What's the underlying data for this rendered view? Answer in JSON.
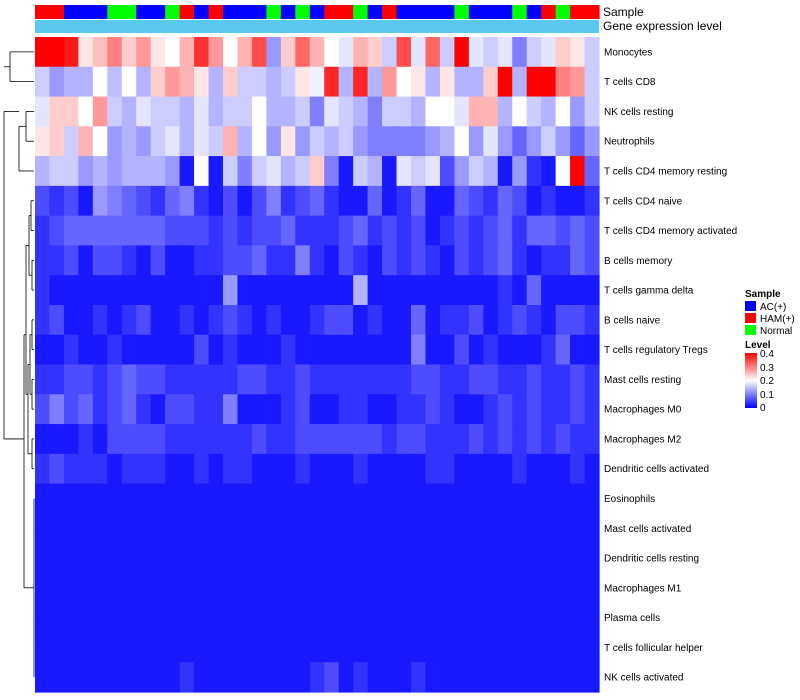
{
  "chart_data": {
    "type": "heatmap",
    "title": "",
    "annotation_rows": [
      "Sample",
      "Gene expression level"
    ],
    "row_labels": [
      "Monocytes",
      "T cells CD8",
      "NK cells resting",
      "Neutrophils",
      "T cells CD4 memory resting",
      "T cells CD4 naive",
      "T cells CD4 memory activated",
      "B cells memory",
      "T cells gamma delta",
      "B cells naive",
      "T cells regulatory  Tregs",
      "Mast cells resting",
      "Macrophages M0",
      "Macrophages M2",
      "Dendritic cells activated",
      "Eosinophils",
      "Mast cells activated",
      "Dendritic cells resting",
      "Macrophages M1",
      "Plasma cells",
      "T cells follicular helper",
      "NK cells activated"
    ],
    "sample_groups": [
      "HAM(+)",
      "HAM(+)",
      "AC(+)",
      "AC(+)",
      "AC(+)",
      "Normal",
      "Normal",
      "AC(+)",
      "AC(+)",
      "Normal",
      "HAM(+)",
      "AC(+)",
      "HAM(+)",
      "AC(+)",
      "AC(+)",
      "AC(+)",
      "Normal",
      "AC(+)",
      "Normal",
      "AC(+)",
      "HAM(+)",
      "HAM(+)",
      "Normal",
      "AC(+)",
      "HAM(+)",
      "AC(+)",
      "AC(+)",
      "AC(+)",
      "AC(+)",
      "Normal",
      "AC(+)",
      "AC(+)",
      "AC(+)",
      "Normal",
      "AC(+)",
      "HAM(+)",
      "Normal",
      "HAM(+)",
      "HAM(+)"
    ],
    "values": [
      [
        0.4,
        0.4,
        0.38,
        0.22,
        0.25,
        0.3,
        0.24,
        0.28,
        0.22,
        0.2,
        0.26,
        0.36,
        0.28,
        0.2,
        0.26,
        0.34,
        0.12,
        0.24,
        0.32,
        0.26,
        0.2,
        0.18,
        0.26,
        0.24,
        0.16,
        0.34,
        0.18,
        0.32,
        0.16,
        0.4,
        0.18,
        0.16,
        0.18,
        0.1,
        0.16,
        0.18,
        0.24,
        0.22,
        0.16
      ],
      [
        0.16,
        0.12,
        0.14,
        0.14,
        0.2,
        0.15,
        0.2,
        0.14,
        0.24,
        0.28,
        0.26,
        0.22,
        0.14,
        0.24,
        0.16,
        0.16,
        0.14,
        0.16,
        0.22,
        0.19,
        0.37,
        0.14,
        0.37,
        0.14,
        0.28,
        0.2,
        0.22,
        0.14,
        0.22,
        0.14,
        0.14,
        0.24,
        0.4,
        0.14,
        0.4,
        0.4,
        0.3,
        0.28,
        0.16
      ],
      [
        0.18,
        0.24,
        0.24,
        0.2,
        0.28,
        0.16,
        0.14,
        0.18,
        0.16,
        0.16,
        0.14,
        0.18,
        0.14,
        0.16,
        0.16,
        0.2,
        0.14,
        0.14,
        0.16,
        0.1,
        0.18,
        0.16,
        0.14,
        0.1,
        0.16,
        0.16,
        0.14,
        0.2,
        0.2,
        0.18,
        0.26,
        0.26,
        0.14,
        0.2,
        0.16,
        0.14,
        0.2,
        0.12,
        0.16
      ],
      [
        0.22,
        0.24,
        0.16,
        0.26,
        0.2,
        0.12,
        0.14,
        0.12,
        0.16,
        0.18,
        0.14,
        0.18,
        0.16,
        0.26,
        0.14,
        0.2,
        0.12,
        0.22,
        0.12,
        0.16,
        0.14,
        0.16,
        0.12,
        0.1,
        0.1,
        0.1,
        0.1,
        0.12,
        0.14,
        0.2,
        0.12,
        0.18,
        0.12,
        0.08,
        0.12,
        0.16,
        0.12,
        0.08,
        0.12
      ],
      [
        0.14,
        0.16,
        0.16,
        0.12,
        0.14,
        0.12,
        0.14,
        0.14,
        0.14,
        0.12,
        0.02,
        0.2,
        0.02,
        0.16,
        0.1,
        0.16,
        0.18,
        0.14,
        0.16,
        0.24,
        0.1,
        0.02,
        0.16,
        0.14,
        0.02,
        0.18,
        0.16,
        0.18,
        0.06,
        0.12,
        0.16,
        0.14,
        0.02,
        0.12,
        0.04,
        0.02,
        0.2,
        0.4,
        0.08
      ],
      [
        0.06,
        0.04,
        0.06,
        0.02,
        0.12,
        0.1,
        0.08,
        0.06,
        0.04,
        0.08,
        0.1,
        0.04,
        0.02,
        0.06,
        0.02,
        0.06,
        0.1,
        0.04,
        0.06,
        0.08,
        0.04,
        0.02,
        0.02,
        0.08,
        0.02,
        0.04,
        0.08,
        0.02,
        0.02,
        0.08,
        0.06,
        0.04,
        0.08,
        0.06,
        0.02,
        0.04,
        0.02,
        0.02,
        0.04
      ],
      [
        0.04,
        0.06,
        0.08,
        0.08,
        0.08,
        0.08,
        0.08,
        0.08,
        0.08,
        0.06,
        0.06,
        0.06,
        0.04,
        0.06,
        0.04,
        0.06,
        0.06,
        0.08,
        0.04,
        0.04,
        0.04,
        0.06,
        0.08,
        0.04,
        0.06,
        0.04,
        0.06,
        0.02,
        0.04,
        0.06,
        0.04,
        0.06,
        0.08,
        0.04,
        0.08,
        0.08,
        0.06,
        0.08,
        0.06
      ],
      [
        0.04,
        0.04,
        0.06,
        0.02,
        0.06,
        0.06,
        0.04,
        0.02,
        0.06,
        0.02,
        0.02,
        0.04,
        0.04,
        0.06,
        0.06,
        0.08,
        0.04,
        0.04,
        0.1,
        0.04,
        0.02,
        0.06,
        0.04,
        0.02,
        0.06,
        0.04,
        0.06,
        0.04,
        0.02,
        0.06,
        0.04,
        0.06,
        0.08,
        0.04,
        0.02,
        0.04,
        0.04,
        0.08,
        0.06
      ],
      [
        0.04,
        0.02,
        0.02,
        0.02,
        0.02,
        0.02,
        0.02,
        0.02,
        0.02,
        0.02,
        0.02,
        0.02,
        0.02,
        0.12,
        0.02,
        0.02,
        0.02,
        0.02,
        0.02,
        0.02,
        0.02,
        0.02,
        0.14,
        0.02,
        0.02,
        0.02,
        0.02,
        0.02,
        0.02,
        0.02,
        0.02,
        0.02,
        0.04,
        0.02,
        0.08,
        0.02,
        0.02,
        0.02,
        0.02
      ],
      [
        0.04,
        0.06,
        0.02,
        0.02,
        0.04,
        0.02,
        0.04,
        0.06,
        0.02,
        0.02,
        0.04,
        0.02,
        0.04,
        0.06,
        0.04,
        0.02,
        0.04,
        0.02,
        0.02,
        0.04,
        0.06,
        0.06,
        0.02,
        0.04,
        0.02,
        0.02,
        0.08,
        0.02,
        0.04,
        0.04,
        0.06,
        0.02,
        0.04,
        0.06,
        0.04,
        0.02,
        0.06,
        0.06,
        0.04
      ],
      [
        0.02,
        0.02,
        0.04,
        0.02,
        0.02,
        0.04,
        0.02,
        0.02,
        0.02,
        0.02,
        0.02,
        0.06,
        0.02,
        0.04,
        0.02,
        0.02,
        0.02,
        0.04,
        0.02,
        0.02,
        0.02,
        0.02,
        0.02,
        0.02,
        0.02,
        0.02,
        0.1,
        0.02,
        0.02,
        0.06,
        0.02,
        0.04,
        0.02,
        0.02,
        0.02,
        0.04,
        0.08,
        0.02,
        0.02
      ],
      [
        0.04,
        0.04,
        0.06,
        0.06,
        0.04,
        0.06,
        0.08,
        0.06,
        0.06,
        0.04,
        0.04,
        0.04,
        0.04,
        0.04,
        0.06,
        0.06,
        0.04,
        0.04,
        0.06,
        0.04,
        0.04,
        0.04,
        0.04,
        0.04,
        0.04,
        0.04,
        0.06,
        0.06,
        0.04,
        0.04,
        0.06,
        0.06,
        0.04,
        0.04,
        0.06,
        0.04,
        0.04,
        0.06,
        0.04
      ],
      [
        0.06,
        0.1,
        0.06,
        0.08,
        0.04,
        0.06,
        0.08,
        0.04,
        0.02,
        0.06,
        0.06,
        0.04,
        0.04,
        0.1,
        0.02,
        0.02,
        0.02,
        0.04,
        0.06,
        0.02,
        0.02,
        0.04,
        0.04,
        0.02,
        0.02,
        0.04,
        0.04,
        0.06,
        0.04,
        0.02,
        0.02,
        0.04,
        0.06,
        0.04,
        0.06,
        0.04,
        0.04,
        0.06,
        0.04
      ],
      [
        0.02,
        0.02,
        0.02,
        0.04,
        0.02,
        0.06,
        0.06,
        0.06,
        0.06,
        0.04,
        0.04,
        0.04,
        0.04,
        0.04,
        0.04,
        0.06,
        0.04,
        0.04,
        0.06,
        0.06,
        0.06,
        0.06,
        0.06,
        0.06,
        0.04,
        0.06,
        0.06,
        0.04,
        0.04,
        0.04,
        0.06,
        0.04,
        0.06,
        0.04,
        0.06,
        0.04,
        0.06,
        0.04,
        0.04
      ],
      [
        0.04,
        0.06,
        0.04,
        0.04,
        0.04,
        0.02,
        0.04,
        0.04,
        0.04,
        0.02,
        0.02,
        0.04,
        0.02,
        0.04,
        0.04,
        0.02,
        0.02,
        0.02,
        0.04,
        0.02,
        0.02,
        0.02,
        0.04,
        0.02,
        0.02,
        0.02,
        0.02,
        0.04,
        0.04,
        0.02,
        0.02,
        0.02,
        0.02,
        0.04,
        0.02,
        0.02,
        0.02,
        0.04,
        0.02
      ],
      [
        0.02,
        0.02,
        0.02,
        0.02,
        0.02,
        0.02,
        0.02,
        0.02,
        0.02,
        0.02,
        0.02,
        0.02,
        0.02,
        0.02,
        0.02,
        0.02,
        0.02,
        0.02,
        0.02,
        0.02,
        0.02,
        0.02,
        0.02,
        0.02,
        0.02,
        0.02,
        0.02,
        0.02,
        0.02,
        0.02,
        0.02,
        0.02,
        0.02,
        0.02,
        0.02,
        0.02,
        0.02,
        0.02,
        0.02
      ],
      [
        0.02,
        0.02,
        0.02,
        0.02,
        0.02,
        0.02,
        0.02,
        0.02,
        0.02,
        0.02,
        0.02,
        0.02,
        0.02,
        0.02,
        0.02,
        0.02,
        0.02,
        0.02,
        0.02,
        0.02,
        0.02,
        0.02,
        0.02,
        0.02,
        0.02,
        0.02,
        0.02,
        0.02,
        0.02,
        0.02,
        0.02,
        0.02,
        0.02,
        0.02,
        0.02,
        0.02,
        0.02,
        0.02,
        0.02
      ],
      [
        0.02,
        0.02,
        0.02,
        0.02,
        0.02,
        0.02,
        0.02,
        0.02,
        0.02,
        0.02,
        0.02,
        0.02,
        0.02,
        0.02,
        0.02,
        0.02,
        0.02,
        0.02,
        0.02,
        0.02,
        0.02,
        0.02,
        0.02,
        0.02,
        0.02,
        0.02,
        0.02,
        0.02,
        0.02,
        0.02,
        0.02,
        0.02,
        0.02,
        0.02,
        0.02,
        0.02,
        0.02,
        0.02,
        0.02
      ],
      [
        0.02,
        0.02,
        0.02,
        0.02,
        0.02,
        0.02,
        0.02,
        0.02,
        0.02,
        0.02,
        0.02,
        0.02,
        0.02,
        0.02,
        0.02,
        0.02,
        0.02,
        0.02,
        0.02,
        0.02,
        0.02,
        0.02,
        0.02,
        0.02,
        0.02,
        0.02,
        0.02,
        0.02,
        0.02,
        0.02,
        0.02,
        0.02,
        0.02,
        0.02,
        0.02,
        0.02,
        0.02,
        0.02,
        0.02
      ],
      [
        0.02,
        0.02,
        0.02,
        0.02,
        0.02,
        0.02,
        0.02,
        0.02,
        0.02,
        0.02,
        0.02,
        0.02,
        0.02,
        0.02,
        0.02,
        0.02,
        0.02,
        0.02,
        0.02,
        0.02,
        0.02,
        0.02,
        0.02,
        0.02,
        0.02,
        0.02,
        0.02,
        0.02,
        0.02,
        0.02,
        0.02,
        0.02,
        0.02,
        0.02,
        0.02,
        0.02,
        0.02,
        0.02,
        0.02
      ],
      [
        0.02,
        0.02,
        0.02,
        0.02,
        0.02,
        0.02,
        0.02,
        0.02,
        0.02,
        0.02,
        0.02,
        0.02,
        0.02,
        0.02,
        0.02,
        0.02,
        0.02,
        0.02,
        0.02,
        0.02,
        0.02,
        0.02,
        0.02,
        0.02,
        0.02,
        0.02,
        0.02,
        0.02,
        0.02,
        0.02,
        0.02,
        0.02,
        0.02,
        0.02,
        0.02,
        0.02,
        0.02,
        0.02,
        0.02
      ],
      [
        0.02,
        0.02,
        0.02,
        0.02,
        0.02,
        0.02,
        0.02,
        0.02,
        0.02,
        0.02,
        0.04,
        0.02,
        0.02,
        0.02,
        0.02,
        0.02,
        0.02,
        0.02,
        0.02,
        0.04,
        0.06,
        0.02,
        0.04,
        0.02,
        0.02,
        0.02,
        0.04,
        0.02,
        0.02,
        0.02,
        0.02,
        0.02,
        0.02,
        0.02,
        0.02,
        0.02,
        0.02,
        0.02,
        0.02
      ]
    ],
    "legend": {
      "sample": {
        "title": "Sample",
        "items": [
          {
            "label": "AC(+)",
            "color": "#0000ff"
          },
          {
            "label": "HAM(+)",
            "color": "#ff0000"
          },
          {
            "label": "Normal",
            "color": "#00ff00"
          }
        ]
      },
      "level": {
        "title": "Level",
        "ticks": [
          "0.4",
          "0.3",
          "0.2",
          "0.1",
          "0"
        ],
        "range": [
          0,
          0.4
        ]
      }
    },
    "gene_expression_color": "#5bc8f0",
    "colormap": {
      "low": "#0000ff",
      "mid": "#ffffff",
      "high": "#ff0000"
    }
  }
}
